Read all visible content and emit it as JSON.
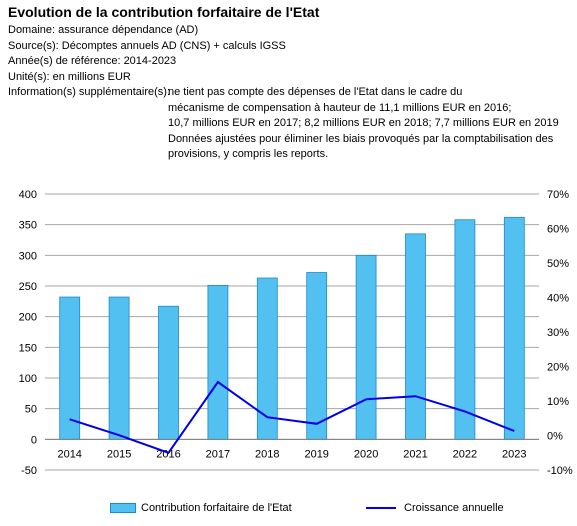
{
  "header": {
    "title": "Evolution  de la contribution forfaitaire de l'Etat",
    "domaine": "Domaine: assurance dépendance (AD)",
    "sources": "Source(s): Décomptes annuels AD (CNS) + calculs IGSS",
    "annees": "Année(s) de référence: 2014-2023",
    "unites": "Unité(s): en millions EUR",
    "info_label": "Information(s) supplémentaire(s):",
    "info_lines": [
      "ne tient pas compte des dépenses de l'Etat dans le cadre du",
      "mécanisme de compensation à hauteur de 11,1 millions EUR en 2016;",
      "10,7 millions EUR en 2017; 8,2 millions EUR en 2018; 7,7 millions EUR en 2019",
      "Données ajustées pour éliminer les biais provoqués par la comptabilisation des",
      "provisions, y compris les reports."
    ]
  },
  "colors": {
    "bar_fill": "#52C0F0",
    "bar_stroke": "#1E88C8",
    "line": "#0000E6",
    "grid": "#A6A6A6"
  },
  "chart_data": {
    "type": "bar",
    "categories": [
      "2014",
      "2015",
      "2016",
      "2017",
      "2018",
      "2019",
      "2020",
      "2021",
      "2022",
      "2023"
    ],
    "series": [
      {
        "name": "Contribution forfaitaire de l'Etat",
        "type": "bar",
        "axis": "left",
        "values": [
          232,
          232,
          217,
          251,
          263,
          272,
          300,
          335,
          358,
          362
        ]
      },
      {
        "name": "Croissance annuelle",
        "type": "line",
        "axis": "right",
        "values": [
          4.7,
          0.1,
          -5.0,
          15.5,
          5.3,
          3.4,
          10.5,
          11.4,
          7.0,
          1.3
        ]
      }
    ],
    "y_left": {
      "min": -50,
      "max": 400,
      "ticks": [
        "-50",
        "0",
        "50",
        "100",
        "150",
        "200",
        "250",
        "300",
        "350",
        "400"
      ]
    },
    "y_right": {
      "min": -10,
      "max": 70,
      "ticks": [
        "-10%",
        "0%",
        "10%",
        "20%",
        "30%",
        "40%",
        "50%",
        "60%",
        "70%"
      ]
    },
    "grid": "horizontal",
    "legend_position": "bottom"
  }
}
